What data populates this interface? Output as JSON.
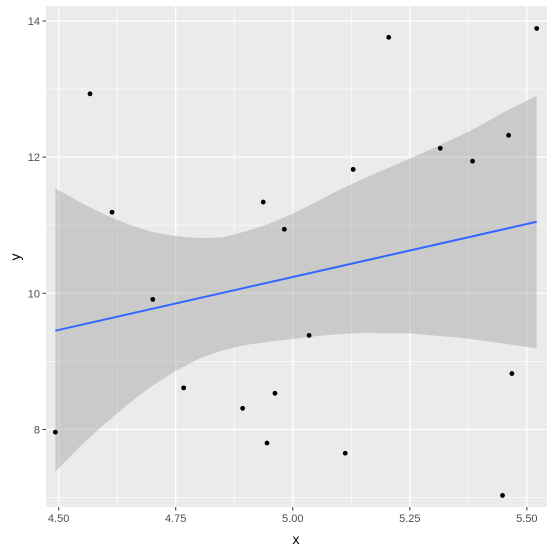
{
  "chart_data": {
    "type": "scatter",
    "xlabel": "x",
    "ylabel": "y",
    "xlim": [
      4.473,
      5.543
    ],
    "ylim": [
      6.86,
      14.22
    ],
    "x_ticks": [
      4.5,
      4.75,
      5.0,
      5.25,
      5.5
    ],
    "x_tick_labels": [
      "4.50",
      "4.75",
      "5.00",
      "5.25",
      "5.50"
    ],
    "y_ticks": [
      8,
      10,
      12,
      14
    ],
    "y_tick_labels": [
      "8",
      "10",
      "12",
      "14"
    ],
    "grid": true,
    "legend": "none",
    "points": [
      {
        "x": 4.493,
        "y": 7.96
      },
      {
        "x": 4.567,
        "y": 12.93
      },
      {
        "x": 4.614,
        "y": 11.19
      },
      {
        "x": 4.701,
        "y": 9.91
      },
      {
        "x": 4.767,
        "y": 8.61
      },
      {
        "x": 4.893,
        "y": 8.31
      },
      {
        "x": 4.937,
        "y": 11.34
      },
      {
        "x": 4.945,
        "y": 7.8
      },
      {
        "x": 4.962,
        "y": 8.53
      },
      {
        "x": 4.982,
        "y": 10.94
      },
      {
        "x": 5.035,
        "y": 9.38
      },
      {
        "x": 5.112,
        "y": 7.65
      },
      {
        "x": 5.129,
        "y": 11.82
      },
      {
        "x": 5.205,
        "y": 13.76
      },
      {
        "x": 5.315,
        "y": 12.13
      },
      {
        "x": 5.384,
        "y": 11.94
      },
      {
        "x": 5.448,
        "y": 7.03
      },
      {
        "x": 5.461,
        "y": 12.32
      },
      {
        "x": 5.468,
        "y": 8.82
      },
      {
        "x": 5.521,
        "y": 13.89
      }
    ],
    "fit": {
      "method": "lm",
      "x_range": [
        4.493,
        5.521
      ],
      "line_color": "#3366FF",
      "band_color": "#999999",
      "curve": [
        {
          "x": 4.493,
          "y": 9.45,
          "lower": 7.38,
          "upper": 11.54
        },
        {
          "x": 4.55,
          "y": 9.54,
          "lower": 7.78,
          "upper": 11.32
        },
        {
          "x": 4.6,
          "y": 9.62,
          "lower": 8.09,
          "upper": 11.15
        },
        {
          "x": 4.65,
          "y": 9.7,
          "lower": 8.38,
          "upper": 11.01
        },
        {
          "x": 4.7,
          "y": 9.77,
          "lower": 8.64,
          "upper": 10.9
        },
        {
          "x": 4.75,
          "y": 9.85,
          "lower": 8.86,
          "upper": 10.84
        },
        {
          "x": 4.8,
          "y": 9.93,
          "lower": 9.04,
          "upper": 10.81
        },
        {
          "x": 4.85,
          "y": 10.01,
          "lower": 9.16,
          "upper": 10.82
        },
        {
          "x": 4.9,
          "y": 10.09,
          "lower": 9.24,
          "upper": 10.91
        },
        {
          "x": 4.95,
          "y": 10.17,
          "lower": 9.29,
          "upper": 11.02
        },
        {
          "x": 5.0,
          "y": 10.25,
          "lower": 9.33,
          "upper": 11.17
        },
        {
          "x": 5.05,
          "y": 10.33,
          "lower": 9.37,
          "upper": 11.34
        },
        {
          "x": 5.1,
          "y": 10.41,
          "lower": 9.4,
          "upper": 11.52
        },
        {
          "x": 5.15,
          "y": 10.49,
          "lower": 9.42,
          "upper": 11.68
        },
        {
          "x": 5.2,
          "y": 10.57,
          "lower": 9.41,
          "upper": 11.83
        },
        {
          "x": 5.25,
          "y": 10.65,
          "lower": 9.41,
          "upper": 11.98
        },
        {
          "x": 5.3,
          "y": 10.73,
          "lower": 9.38,
          "upper": 12.13
        },
        {
          "x": 5.35,
          "y": 10.81,
          "lower": 9.35,
          "upper": 12.29
        },
        {
          "x": 5.4,
          "y": 10.89,
          "lower": 9.31,
          "upper": 12.46
        },
        {
          "x": 5.45,
          "y": 10.97,
          "lower": 9.26,
          "upper": 12.66
        },
        {
          "x": 5.521,
          "y": 11.05,
          "lower": 9.19,
          "upper": 12.9
        }
      ]
    }
  }
}
